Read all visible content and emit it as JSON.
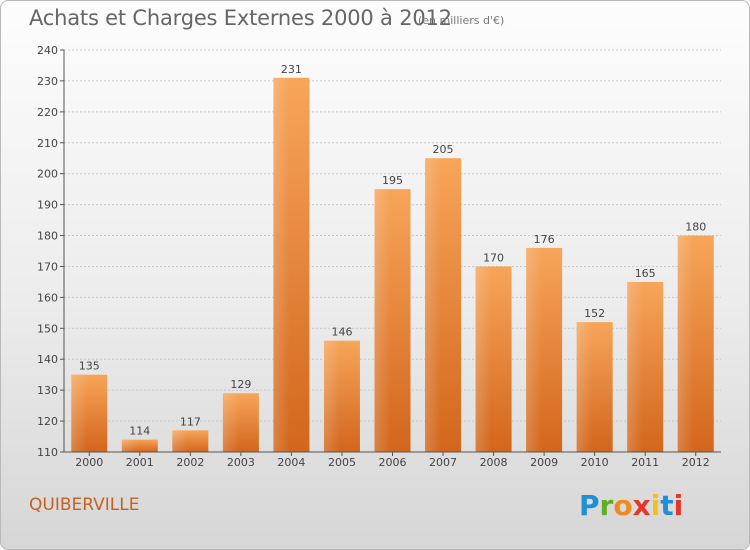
{
  "chart_data": {
    "type": "bar",
    "title": "Achats et Charges Externes 2000 à 2012",
    "subtitle": "(en milliers d'€)",
    "categories": [
      "2000",
      "2001",
      "2002",
      "2003",
      "2004",
      "2005",
      "2006",
      "2007",
      "2008",
      "2009",
      "2010",
      "2011",
      "2012"
    ],
    "values": [
      135,
      114,
      117,
      129,
      231,
      146,
      195,
      205,
      170,
      176,
      152,
      165,
      180
    ],
    "ylim": [
      110,
      240
    ],
    "yticks": [
      110,
      120,
      130,
      140,
      150,
      160,
      170,
      180,
      190,
      200,
      210,
      220,
      230,
      240
    ],
    "grid": true,
    "bar_color": "#e8832f",
    "xlabel": "",
    "ylabel": ""
  },
  "footer": {
    "city": "QUIBERVILLE",
    "logo": "Proxiti"
  },
  "colors": {
    "bar_light": "#f7a55a",
    "bar_dark": "#d2661c",
    "city": "#c8601f",
    "axis": "#555555"
  }
}
